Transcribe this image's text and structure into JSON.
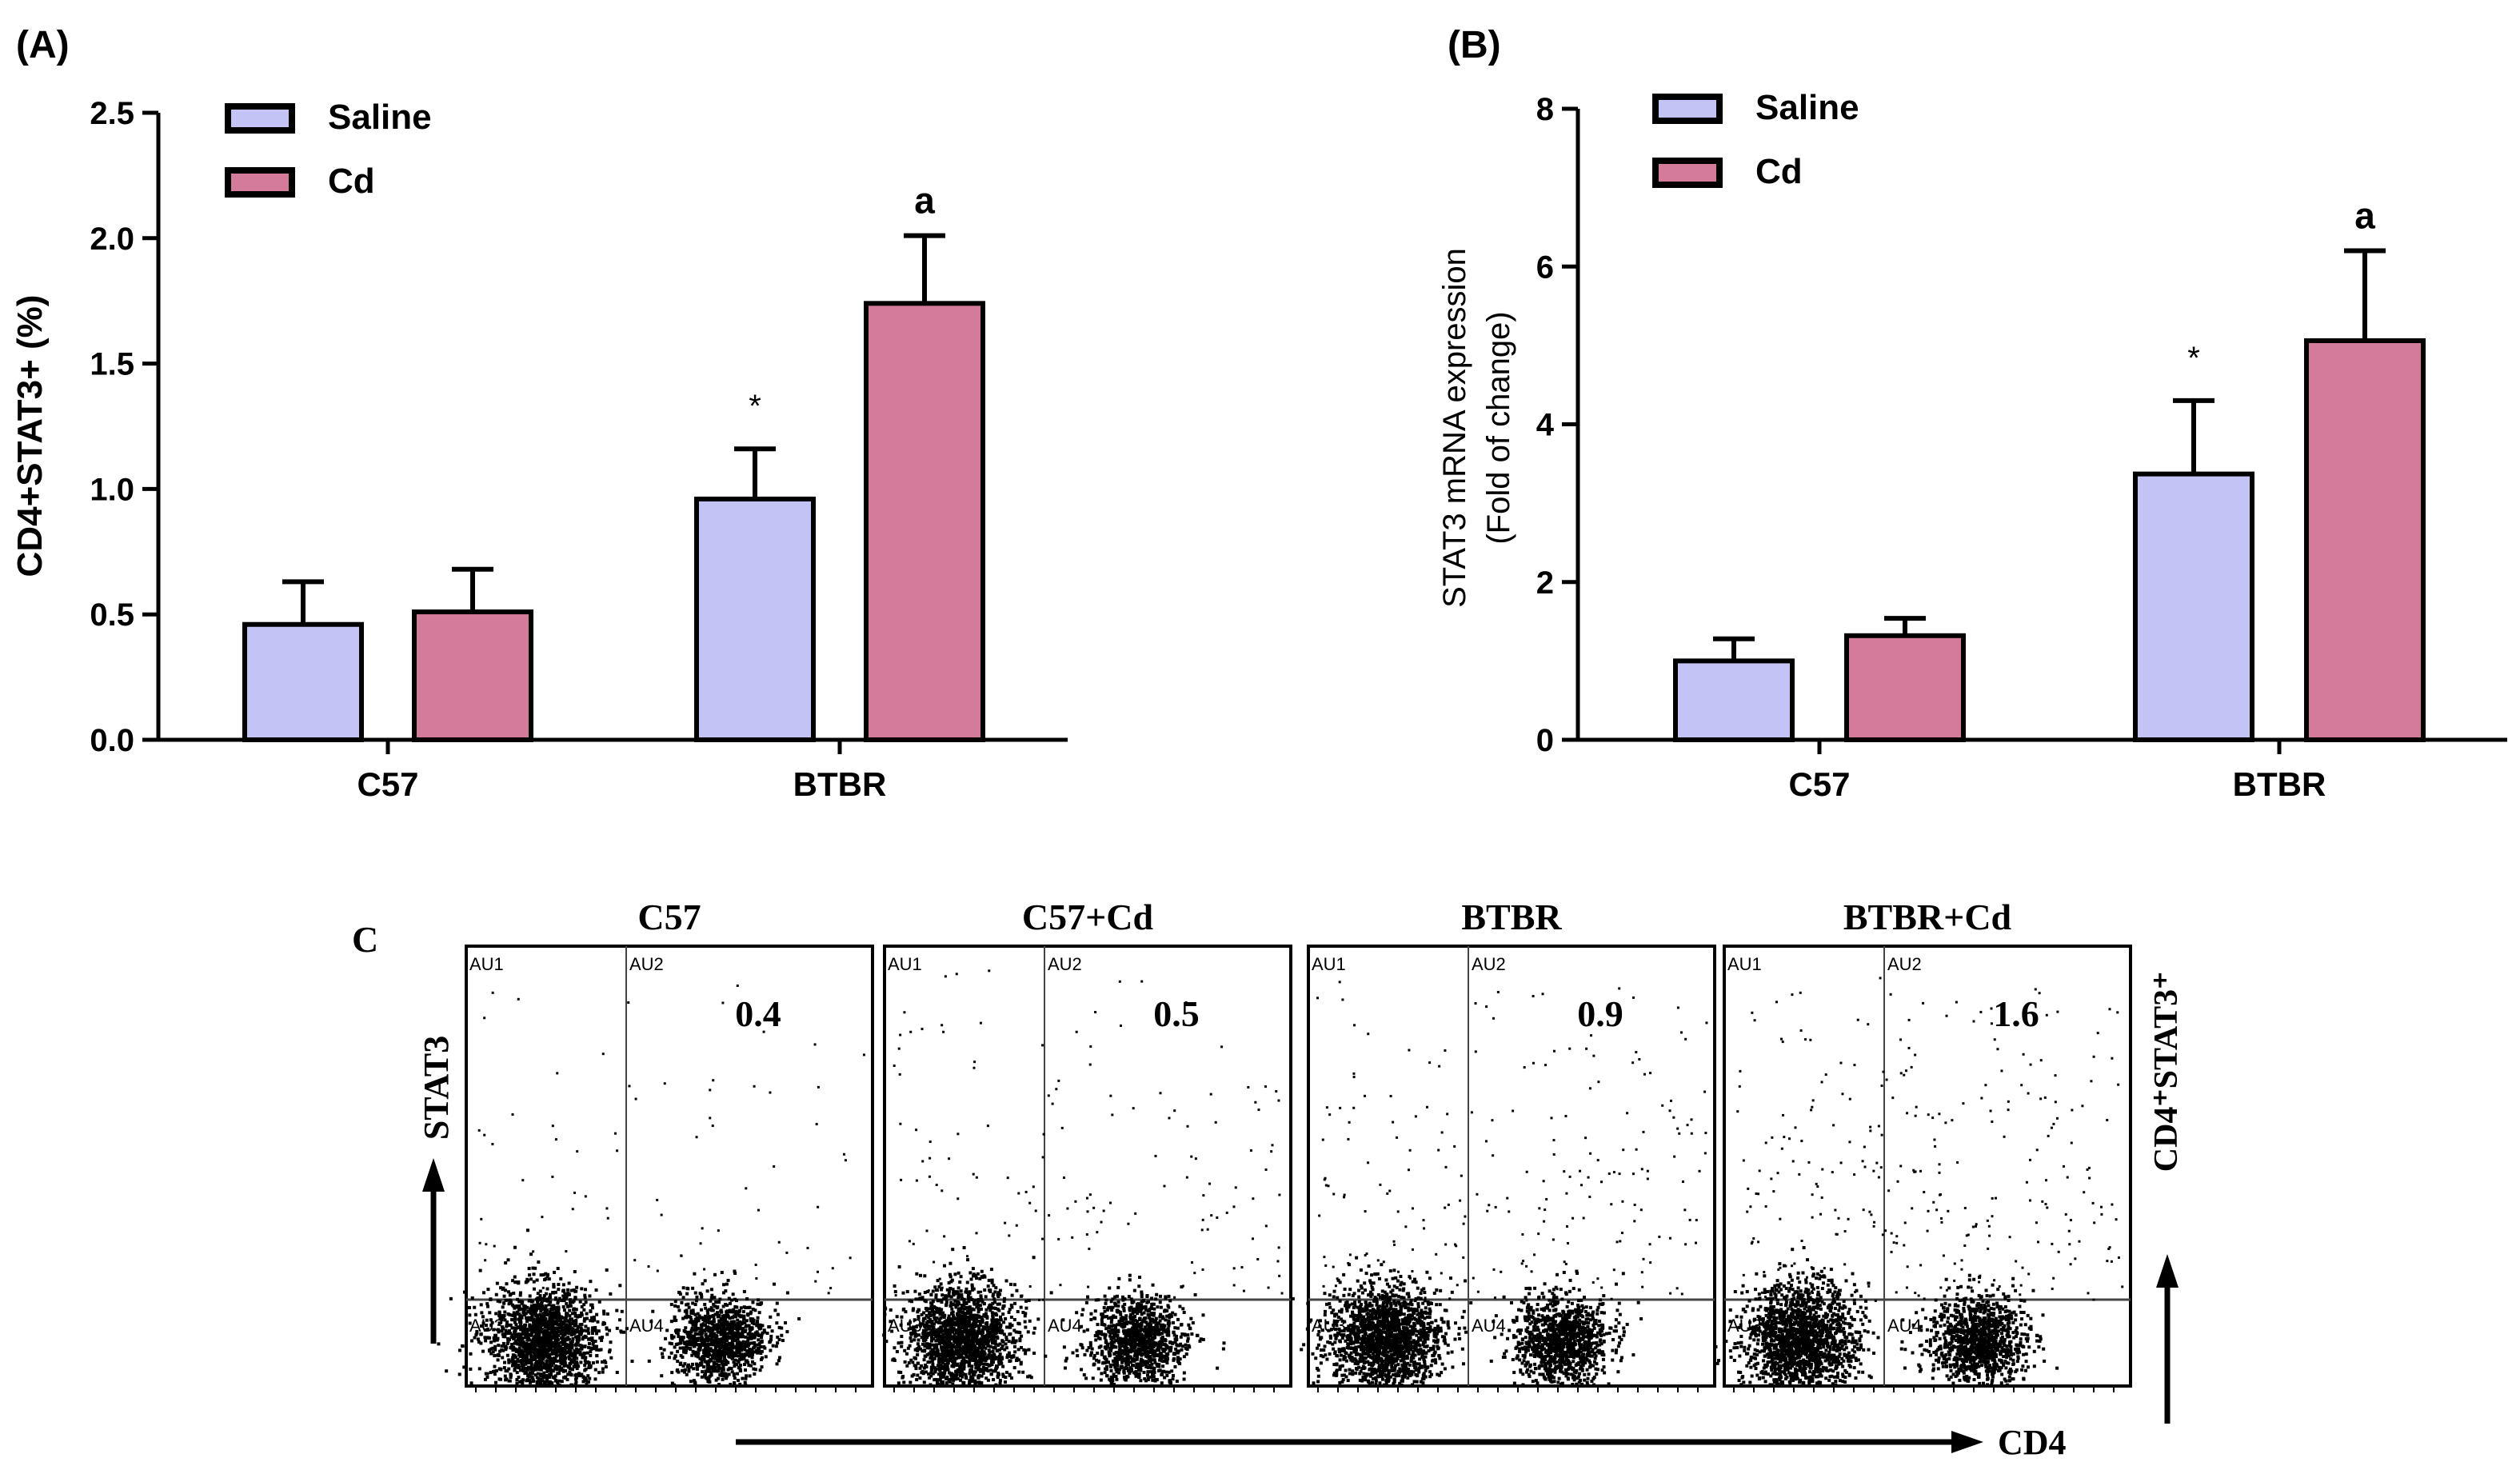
{
  "colors": {
    "saline": "#c3c3f5",
    "cd": "#d47b9c",
    "axis": "#000000"
  },
  "chart_data": [
    {
      "id": "A",
      "type": "bar",
      "panel_label": "(A)",
      "ylabel": "CD4+STAT3+ (%)",
      "xlabel": "",
      "ylim": [
        0,
        2.5
      ],
      "yticks": [
        "0.0",
        "0.5",
        "1.0",
        "1.5",
        "2.0",
        "2.5"
      ],
      "categories": [
        "C57",
        "BTBR"
      ],
      "legend": {
        "position": "top-left",
        "entries": [
          "Saline",
          "Cd"
        ]
      },
      "series": [
        {
          "name": "Saline",
          "values": [
            0.46,
            0.96
          ],
          "errors": [
            0.17,
            0.2
          ]
        },
        {
          "name": "Cd",
          "values": [
            0.51,
            1.74
          ],
          "errors": [
            0.17,
            0.27
          ]
        }
      ],
      "annotations": [
        {
          "category": "BTBR",
          "series": "Saline",
          "text": "*"
        },
        {
          "category": "BTBR",
          "series": "Cd",
          "text": "a"
        }
      ]
    },
    {
      "id": "B",
      "type": "bar",
      "panel_label": "(B)",
      "ylabel_lines": [
        "STAT3 mRNA expression",
        "(Fold of change)"
      ],
      "xlabel": "",
      "ylim": [
        0,
        8
      ],
      "yticks": [
        "0",
        "2",
        "4",
        "6",
        "8"
      ],
      "categories": [
        "C57",
        "BTBR"
      ],
      "legend": {
        "position": "top-left",
        "entries": [
          "Saline",
          "Cd"
        ]
      },
      "series": [
        {
          "name": "Saline",
          "values": [
            1.0,
            3.37
          ],
          "errors": [
            0.28,
            0.93
          ]
        },
        {
          "name": "Cd",
          "values": [
            1.32,
            5.06
          ],
          "errors": [
            0.22,
            1.14
          ]
        }
      ],
      "annotations": [
        {
          "category": "BTBR",
          "series": "Saline",
          "text": "*"
        },
        {
          "category": "BTBR",
          "series": "Cd",
          "text": "a"
        }
      ]
    },
    {
      "id": "C",
      "type": "scatter",
      "panel_label": "C",
      "ylabel": "STAT3",
      "xlabel": "CD4",
      "right_label": "CD4⁺STAT3⁺",
      "quadrant_labels": [
        "AU1",
        "AU2",
        "AU3",
        "AU4"
      ],
      "plots": [
        {
          "title": "C57",
          "value": "0.4"
        },
        {
          "title": "C57+Cd",
          "value": "0.5"
        },
        {
          "title": "BTBR",
          "value": "0.9"
        },
        {
          "title": "BTBR+Cd",
          "value": "1.6"
        }
      ]
    }
  ]
}
